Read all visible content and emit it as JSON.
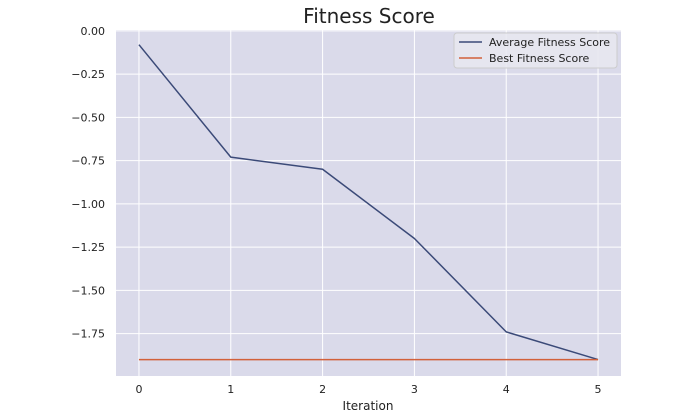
{
  "chart_data": {
    "type": "line",
    "title": "Fitness Score",
    "xlabel": "Iteration",
    "ylabel": "",
    "x": [
      0,
      1,
      2,
      3,
      4,
      5
    ],
    "xticks": [
      "0",
      "1",
      "2",
      "3",
      "4",
      "5"
    ],
    "yticks": [
      "0.00",
      "−0.25",
      "−0.50",
      "−0.75",
      "−1.00",
      "−1.25",
      "−1.50",
      "−1.75"
    ],
    "ytick_values": [
      0,
      -0.25,
      -0.5,
      -0.75,
      -1.0,
      -1.25,
      -1.5,
      -1.75
    ],
    "xlim": [
      -0.25,
      5.25
    ],
    "ylim": [
      -1.995,
      0.005
    ],
    "grid": true,
    "legend_position": "top-right",
    "series": [
      {
        "name": "Average Fitness Score",
        "color": "#3b4a78",
        "values": [
          -0.08,
          -0.73,
          -0.8,
          -1.2,
          -1.74,
          -1.9
        ]
      },
      {
        "name": "Best Fitness Score",
        "color": "#d2603a",
        "values": [
          -1.9,
          -1.9,
          -1.9,
          -1.9,
          -1.9,
          -1.9
        ]
      }
    ],
    "style": {
      "plot_background": "#dadaea",
      "grid_color": "#ffffff"
    }
  }
}
